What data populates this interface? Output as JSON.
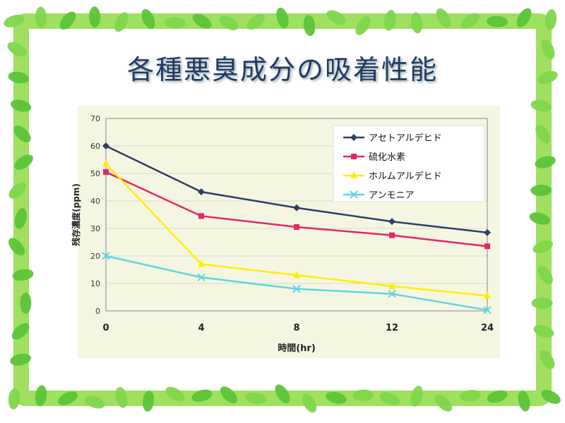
{
  "slide": {
    "title": "各種悪臭成分の吸着性能"
  },
  "colors": {
    "border": "#9fe060",
    "leaf": "#5cc43a",
    "plot_bg": "#f5f6e2"
  },
  "chart_data": {
    "type": "line",
    "title": "各種悪臭成分の吸着性能",
    "xlabel": "時間(hr)",
    "ylabel": "残存濃度(ppm)",
    "categories": [
      "0",
      "4",
      "8",
      "12",
      "24"
    ],
    "ylim": [
      0,
      70
    ],
    "yticks": [
      "0",
      "10",
      "20",
      "30",
      "40",
      "50",
      "60",
      "70"
    ],
    "grid": true,
    "legend": "top-right",
    "series": [
      {
        "name": "アセトアルデヒド",
        "color": "#2e3f66",
        "marker": "diamond",
        "values": [
          60,
          43.3,
          37.5,
          32.5,
          28.5
        ]
      },
      {
        "name": "硫化水素",
        "color": "#e8246a",
        "marker": "square",
        "values": [
          50.5,
          34.5,
          30.5,
          27.5,
          23.5
        ]
      },
      {
        "name": "ホルムアルデヒド",
        "color": "#ffee00",
        "marker": "triangle",
        "values": [
          53.5,
          17,
          13,
          9,
          5.5
        ]
      },
      {
        "name": "アンモニア",
        "color": "#5fd6df",
        "marker": "x",
        "values": [
          20,
          12.2,
          8,
          6.2,
          0.3
        ]
      }
    ]
  }
}
